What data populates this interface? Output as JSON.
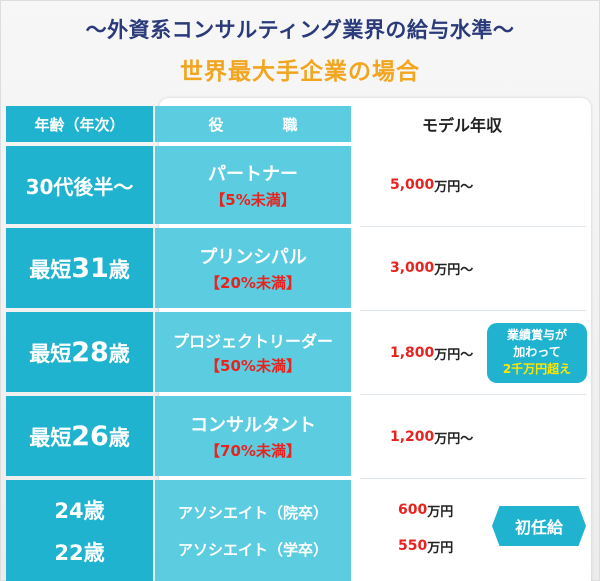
{
  "title": "～外資系コンサルティング業界の給与水準～",
  "subtitle": "世界最大手企業の場合",
  "headers": {
    "age": "年齢（年次）",
    "position": "役　職",
    "salary": "モデル年収"
  },
  "rows": [
    {
      "age": "30代後半～",
      "role": "パートナー",
      "share": "【5%未満】",
      "salary": "5,000",
      "unit": "万円～"
    },
    {
      "age_prefix": "最短",
      "age_num": "31",
      "age_suffix": "歳",
      "role": "プリンシパル",
      "share": "【20%未満】",
      "salary": "3,000",
      "unit": "万円～"
    },
    {
      "age_prefix": "最短",
      "age_num": "28",
      "age_suffix": "歳",
      "role": "プロジェクトリーダー",
      "share": "【50%未満】",
      "salary": "1,800",
      "unit": "万円～"
    },
    {
      "age_prefix": "最短",
      "age_num": "26",
      "age_suffix": "歳",
      "role": "コンサルタント",
      "share": "【70%未満】",
      "salary": "1,200",
      "unit": "万円～"
    }
  ],
  "entry": {
    "ages": [
      "24歳",
      "22歳"
    ],
    "roles": [
      "アソシエイト（院卒）",
      "アソシエイト（学卒）"
    ],
    "salaries": [
      {
        "value": "600",
        "unit": "万円"
      },
      {
        "value": "550",
        "unit": "万円"
      }
    ]
  },
  "bonus_badge": {
    "line1": "業績賞与が",
    "line2": "加わって",
    "line3": "2千万円超え"
  },
  "starting_badge": "初任給"
}
